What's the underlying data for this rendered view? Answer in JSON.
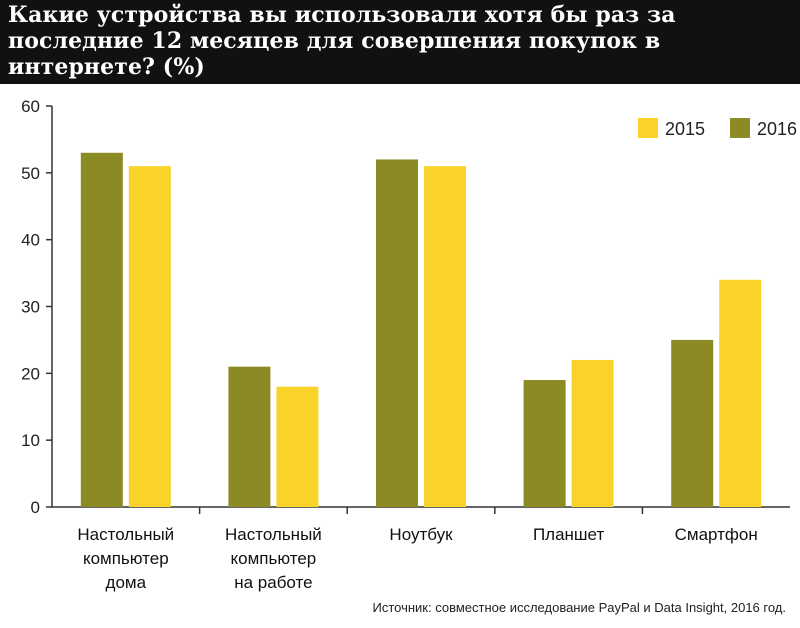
{
  "title": "Какие устройства вы использовали хотя бы раз за последние 12 месяцев для совершения покупок в интернете? (%)",
  "source": "Источник: совместное исследование PayPal и Data Insight, 2016 год.",
  "colors": {
    "s2015": "#F9D32A",
    "s2016": "#8C8A24",
    "axis": "#333333"
  },
  "chart_data": {
    "type": "bar",
    "categories": [
      [
        "Настольный",
        "компьютер",
        "дома"
      ],
      [
        "Настольный",
        "компьютер",
        "на работе"
      ],
      [
        "Ноутбук"
      ],
      [
        "Планшет"
      ],
      [
        "Смартфон"
      ]
    ],
    "series": [
      {
        "name": "2016",
        "values": [
          53,
          21,
          52,
          19,
          25
        ]
      },
      {
        "name": "2015",
        "values": [
          51,
          18,
          51,
          22,
          34
        ]
      }
    ],
    "legend_order": [
      "2015",
      "2016"
    ],
    "legend_position": "top-right",
    "ylim": [
      0,
      60
    ],
    "yticks": [
      0,
      10,
      20,
      30,
      40,
      50,
      60
    ],
    "xlabel": "",
    "ylabel": "",
    "grid": false
  }
}
